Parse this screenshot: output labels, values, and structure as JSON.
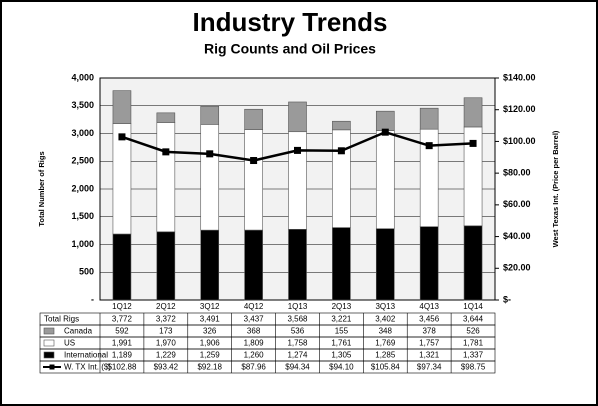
{
  "chart_data": {
    "type": "stacked-bar-line",
    "title": "Industry Trends",
    "subtitle": "Rig Counts and Oil Prices",
    "y_label": "Total Number of Rigs",
    "y2_label": "West Texas Int. (Price per Barrel)",
    "categories": [
      "1Q12",
      "2Q12",
      "3Q12",
      "4Q12",
      "1Q13",
      "2Q13",
      "3Q13",
      "4Q13",
      "1Q14"
    ],
    "totals": {
      "name": "Total Rigs",
      "values": [
        3772,
        3372,
        3491,
        3437,
        3568,
        3221,
        3402,
        3456,
        3644
      ],
      "value_labels": [
        "3,772",
        "3,372",
        "3,491",
        "3,437",
        "3,568",
        "3,221",
        "3,402",
        "3,456",
        "3,644"
      ]
    },
    "series": [
      {
        "name": "Canada",
        "color": "#9a9a9a",
        "values": [
          592,
          173,
          326,
          368,
          536,
          155,
          348,
          378,
          526
        ]
      },
      {
        "name": "US",
        "color": "#ffffff",
        "values": [
          1991,
          1970,
          1906,
          1809,
          1758,
          1761,
          1769,
          1757,
          1781
        ],
        "value_labels": [
          "1,991",
          "1,970",
          "1,906",
          "1,809",
          "1,758",
          "1,761",
          "1,769",
          "1,757",
          "1,781"
        ]
      },
      {
        "name": "International",
        "color": "#000000",
        "values": [
          1189,
          1229,
          1259,
          1260,
          1274,
          1305,
          1285,
          1321,
          1337
        ],
        "value_labels": [
          "1,189",
          "1,229",
          "1,259",
          "1,260",
          "1,274",
          "1,305",
          "1,285",
          "1,321",
          "1,337"
        ]
      },
      {
        "name": "W. TX Int. ($)",
        "color": "#000000",
        "axis": "y2",
        "values": [
          102.88,
          93.42,
          92.18,
          87.96,
          94.34,
          94.1,
          105.84,
          97.34,
          98.75
        ],
        "value_labels": [
          "$102.88",
          "$93.42",
          "$92.18",
          "$87.96",
          "$94.34",
          "$94.10",
          "$105.84",
          "$97.34",
          "$98.75"
        ]
      }
    ],
    "stack_order": [
      "International",
      "US",
      "Canada"
    ],
    "ylim": [
      0,
      4000
    ],
    "yticks": [
      {
        "value": 0,
        "label": "-"
      },
      500,
      {
        "value": 1000,
        "label": "1,000"
      },
      {
        "value": 1500,
        "label": "1,500"
      },
      {
        "value": 2000,
        "label": "2,000"
      },
      {
        "value": 2500,
        "label": "2,500"
      },
      {
        "value": 3000,
        "label": "3,000"
      },
      {
        "value": 3500,
        "label": "3,500"
      },
      {
        "value": 4000,
        "label": "4,000"
      }
    ],
    "y2lim": [
      0,
      140
    ],
    "y2ticks": [
      {
        "value": 0,
        "label": "$-"
      },
      {
        "value": 20,
        "label": "$20.00"
      },
      {
        "value": 40,
        "label": "$40.00"
      },
      {
        "value": 60,
        "label": "$60.00"
      },
      {
        "value": 80,
        "label": "$80.00"
      },
      {
        "value": 100,
        "label": "$100.00"
      },
      {
        "value": 120,
        "label": "$120.00"
      },
      {
        "value": 140,
        "label": "$140.00"
      }
    ],
    "grid": true
  }
}
